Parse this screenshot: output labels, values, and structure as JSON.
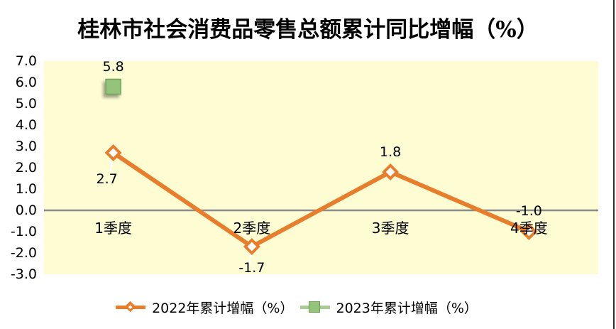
{
  "title": "桂林市社会消费品零售总额累计同比增幅（%）",
  "colors": {
    "plot_bg": "#FDFCD3",
    "orange": "#E87D2B",
    "green_fill": "#94C37B",
    "green_border": "#71A054",
    "green_legend_line": "#A9CB94",
    "zero_line": "#8B8B8B",
    "edge_line": "#2E2E2E",
    "text": "#000000"
  },
  "chart_data": {
    "type": "line",
    "title": "桂林市社会消费品零售总额累计同比增幅（%）",
    "categories": [
      "1季度",
      "2季度",
      "3季度",
      "4季度"
    ],
    "series": [
      {
        "name": "2022年累计增幅（%）",
        "values": [
          2.7,
          -1.7,
          1.8,
          -1.0
        ],
        "marker": "diamond",
        "color": "#E87D2B",
        "data_labels": [
          "2.7",
          "-1.7",
          "1.8",
          "-1.0"
        ],
        "label_offsets": [
          [
            -9,
            43
          ],
          [
            0,
            36
          ],
          [
            0,
            -22
          ],
          [
            0,
            -23
          ]
        ]
      },
      {
        "name": "2023年累计增幅（%）",
        "values": [
          5.8,
          null,
          null,
          null
        ],
        "marker": "square",
        "color": "#94C37B",
        "data_labels": [
          "5.8",
          "",
          "",
          ""
        ],
        "label_offsets": [
          [
            0,
            -22
          ],
          [
            0,
            0
          ],
          [
            0,
            0
          ],
          [
            0,
            0
          ]
        ]
      }
    ],
    "ylim": [
      -3.0,
      7.0
    ],
    "y_ticks": [
      7,
      6,
      5,
      4,
      3,
      2,
      1,
      0,
      -1,
      -2,
      -3
    ],
    "y_tick_format": "one_decimal",
    "grid": false,
    "zero_line": true,
    "legend_position": "bottom",
    "plot_background": "#FDFCD3"
  },
  "legend": {
    "items": [
      {
        "label": "2022年累计增幅（%）"
      },
      {
        "label": "2023年累计增幅（%）"
      }
    ]
  }
}
